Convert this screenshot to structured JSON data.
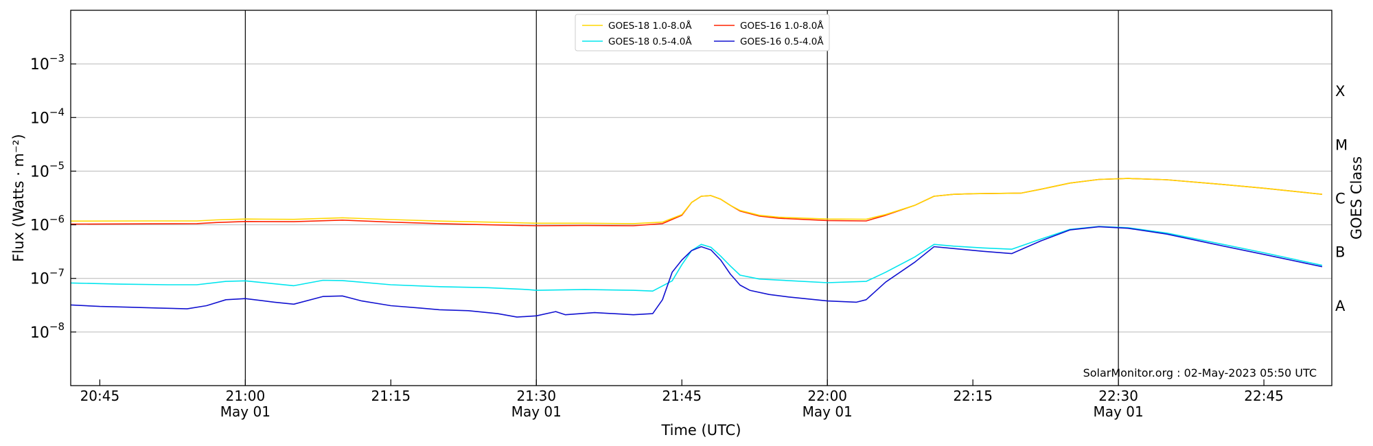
{
  "chart_data": {
    "type": "line",
    "y_scale": "log",
    "ylim": [
      1e-09,
      0.01
    ],
    "xlim": [
      "2023-05-01 20:42",
      "2023-05-01 22:52"
    ],
    "grid": "horizontal",
    "legend_position": "top-center",
    "xlabel": "Time (UTC)",
    "ylabel": "Flux (Watts · m⁻²)",
    "ylabel_right": "GOES Class",
    "credit": "SolarMonitor.org : 02-May-2023 05:50 UTC",
    "x_ticks": [
      {
        "time": "2023-05-01 20:45",
        "label": "20:45",
        "sub": ""
      },
      {
        "time": "2023-05-01 21:00",
        "label": "21:00",
        "sub": "May 01"
      },
      {
        "time": "2023-05-01 21:15",
        "label": "21:15",
        "sub": ""
      },
      {
        "time": "2023-05-01 21:30",
        "label": "21:30",
        "sub": "May 01"
      },
      {
        "time": "2023-05-01 21:45",
        "label": "21:45",
        "sub": ""
      },
      {
        "time": "2023-05-01 22:00",
        "label": "22:00",
        "sub": "May 01"
      },
      {
        "time": "2023-05-01 22:15",
        "label": "22:15",
        "sub": ""
      },
      {
        "time": "2023-05-01 22:30",
        "label": "22:30",
        "sub": "May 01"
      },
      {
        "time": "2023-05-01 22:45",
        "label": "22:45",
        "sub": ""
      }
    ],
    "vertical_lines": [
      "2023-05-01 21:00",
      "2023-05-01 21:30",
      "2023-05-01 22:00",
      "2023-05-01 22:30"
    ],
    "y_ticks": [
      {
        "value": 1e-08,
        "base": "10",
        "exp": "−8"
      },
      {
        "value": 1e-07,
        "base": "10",
        "exp": "−7"
      },
      {
        "value": 1e-06,
        "base": "10",
        "exp": "−6"
      },
      {
        "value": 1e-05,
        "base": "10",
        "exp": "−5"
      },
      {
        "value": 0.0001,
        "base": "10",
        "exp": "−4"
      },
      {
        "value": 0.001,
        "base": "10",
        "exp": "−3"
      }
    ],
    "goes_classes": [
      {
        "label": "A",
        "value": 3.16e-08
      },
      {
        "label": "B",
        "value": 3.16e-07
      },
      {
        "label": "C",
        "value": 3.16e-06
      },
      {
        "label": "M",
        "value": 3.16e-05
      },
      {
        "label": "X",
        "value": 0.000316
      }
    ],
    "series": [
      {
        "name": "GOES-18 1.0-8.0Å",
        "color": "#ffd700",
        "points": [
          [
            "2023-05-01 20:42",
            1.17e-06
          ],
          [
            "2023-05-01 20:50",
            1.18e-06
          ],
          [
            "2023-05-01 20:55",
            1.18e-06
          ],
          [
            "2023-05-01 20:57",
            1.23e-06
          ],
          [
            "2023-05-01 21:00",
            1.28e-06
          ],
          [
            "2023-05-01 21:05",
            1.26e-06
          ],
          [
            "2023-05-01 21:10",
            1.35e-06
          ],
          [
            "2023-05-01 21:15",
            1.25e-06
          ],
          [
            "2023-05-01 21:20",
            1.17e-06
          ],
          [
            "2023-05-01 21:25",
            1.12e-06
          ],
          [
            "2023-05-01 21:30",
            1.07e-06
          ],
          [
            "2023-05-01 21:35",
            1.07e-06
          ],
          [
            "2023-05-01 21:40",
            1.05e-06
          ],
          [
            "2023-05-01 21:43",
            1.12e-06
          ],
          [
            "2023-05-01 21:45",
            1.55e-06
          ],
          [
            "2023-05-01 21:46",
            2.6e-06
          ],
          [
            "2023-05-01 21:47",
            3.4e-06
          ],
          [
            "2023-05-01 21:48",
            3.5e-06
          ],
          [
            "2023-05-01 21:49",
            3e-06
          ],
          [
            "2023-05-01 21:50",
            2.3e-06
          ],
          [
            "2023-05-01 21:51",
            1.85e-06
          ],
          [
            "2023-05-01 21:53",
            1.5e-06
          ],
          [
            "2023-05-01 21:55",
            1.38e-06
          ],
          [
            "2023-05-01 22:00",
            1.28e-06
          ],
          [
            "2023-05-01 22:04",
            1.27e-06
          ],
          [
            "2023-05-01 22:06",
            1.55e-06
          ],
          [
            "2023-05-01 22:09",
            2.3e-06
          ],
          [
            "2023-05-01 22:11",
            3.4e-06
          ],
          [
            "2023-05-01 22:13",
            3.7e-06
          ],
          [
            "2023-05-01 22:15",
            3.8e-06
          ],
          [
            "2023-05-01 22:20",
            3.9e-06
          ],
          [
            "2023-05-01 22:22",
            4.6e-06
          ],
          [
            "2023-05-01 22:25",
            6e-06
          ],
          [
            "2023-05-01 22:28",
            7e-06
          ],
          [
            "2023-05-01 22:31",
            7.3e-06
          ],
          [
            "2023-05-01 22:35",
            6.9e-06
          ],
          [
            "2023-05-01 22:40",
            5.8e-06
          ],
          [
            "2023-05-01 22:45",
            4.8e-06
          ],
          [
            "2023-05-01 22:51",
            3.7e-06
          ]
        ]
      },
      {
        "name": "GOES-18 0.5-4.0Å",
        "color": "#00e5ee",
        "points": [
          [
            "2023-05-01 20:42",
            8.2e-08
          ],
          [
            "2023-05-01 20:47",
            7.8e-08
          ],
          [
            "2023-05-01 20:52",
            7.6e-08
          ],
          [
            "2023-05-01 20:55",
            7.6e-08
          ],
          [
            "2023-05-01 20:58",
            8.8e-08
          ],
          [
            "2023-05-01 21:00",
            9e-08
          ],
          [
            "2023-05-01 21:05",
            7.3e-08
          ],
          [
            "2023-05-01 21:08",
            9.2e-08
          ],
          [
            "2023-05-01 21:10",
            9.1e-08
          ],
          [
            "2023-05-01 21:15",
            7.6e-08
          ],
          [
            "2023-05-01 21:20",
            7e-08
          ],
          [
            "2023-05-01 21:25",
            6.7e-08
          ],
          [
            "2023-05-01 21:29",
            6.2e-08
          ],
          [
            "2023-05-01 21:30",
            6e-08
          ],
          [
            "2023-05-01 21:35",
            6.2e-08
          ],
          [
            "2023-05-01 21:40",
            6e-08
          ],
          [
            "2023-05-01 21:42",
            5.8e-08
          ],
          [
            "2023-05-01 21:44",
            9e-08
          ],
          [
            "2023-05-01 21:45",
            1.8e-07
          ],
          [
            "2023-05-01 21:46",
            3.3e-07
          ],
          [
            "2023-05-01 21:47",
            4.3e-07
          ],
          [
            "2023-05-01 21:48",
            3.8e-07
          ],
          [
            "2023-05-01 21:49",
            2.6e-07
          ],
          [
            "2023-05-01 21:50",
            1.7e-07
          ],
          [
            "2023-05-01 21:51",
            1.15e-07
          ],
          [
            "2023-05-01 21:53",
            9.7e-08
          ],
          [
            "2023-05-01 21:55",
            9.3e-08
          ],
          [
            "2023-05-01 22:00",
            8.3e-08
          ],
          [
            "2023-05-01 22:04",
            8.8e-08
          ],
          [
            "2023-05-01 22:06",
            1.3e-07
          ],
          [
            "2023-05-01 22:09",
            2.5e-07
          ],
          [
            "2023-05-01 22:11",
            4.3e-07
          ],
          [
            "2023-05-01 22:13",
            4e-07
          ],
          [
            "2023-05-01 22:16",
            3.7e-07
          ],
          [
            "2023-05-01 22:19",
            3.5e-07
          ],
          [
            "2023-05-01 22:22",
            5.4e-07
          ],
          [
            "2023-05-01 22:25",
            8.2e-07
          ],
          [
            "2023-05-01 22:28",
            9.3e-07
          ],
          [
            "2023-05-01 22:31",
            8.8e-07
          ],
          [
            "2023-05-01 22:35",
            7e-07
          ],
          [
            "2023-05-01 22:40",
            4.6e-07
          ],
          [
            "2023-05-01 22:45",
            3e-07
          ],
          [
            "2023-05-01 22:51",
            1.75e-07
          ]
        ]
      },
      {
        "name": "GOES-16 1.0-8.0Å",
        "color": "#ff2200",
        "points": [
          [
            "2023-05-01 20:42",
            1.03e-06
          ],
          [
            "2023-05-01 20:50",
            1.04e-06
          ],
          [
            "2023-05-01 20:55",
            1.05e-06
          ],
          [
            "2023-05-01 20:57",
            1.1e-06
          ],
          [
            "2023-05-01 21:00",
            1.15e-06
          ],
          [
            "2023-05-01 21:05",
            1.14e-06
          ],
          [
            "2023-05-01 21:10",
            1.22e-06
          ],
          [
            "2023-05-01 21:15",
            1.12e-06
          ],
          [
            "2023-05-01 21:20",
            1.05e-06
          ],
          [
            "2023-05-01 21:25",
            1e-06
          ],
          [
            "2023-05-01 21:30",
            9.6e-07
          ],
          [
            "2023-05-01 21:35",
            9.7e-07
          ],
          [
            "2023-05-01 21:40",
            9.6e-07
          ],
          [
            "2023-05-01 21:43",
            1.05e-06
          ],
          [
            "2023-05-01 21:45",
            1.5e-06
          ],
          [
            "2023-05-01 21:46",
            2.6e-06
          ],
          [
            "2023-05-01 21:47",
            3.4e-06
          ],
          [
            "2023-05-01 21:48",
            3.5e-06
          ],
          [
            "2023-05-01 21:49",
            3e-06
          ],
          [
            "2023-05-01 21:50",
            2.3e-06
          ],
          [
            "2023-05-01 21:51",
            1.8e-06
          ],
          [
            "2023-05-01 21:53",
            1.45e-06
          ],
          [
            "2023-05-01 21:55",
            1.32e-06
          ],
          [
            "2023-05-01 22:00",
            1.2e-06
          ],
          [
            "2023-05-01 22:04",
            1.18e-06
          ],
          [
            "2023-05-01 22:06",
            1.5e-06
          ],
          [
            "2023-05-01 22:09",
            2.3e-06
          ],
          [
            "2023-05-01 22:11",
            3.4e-06
          ],
          [
            "2023-05-01 22:13",
            3.7e-06
          ],
          [
            "2023-05-01 22:15",
            3.8e-06
          ],
          [
            "2023-05-01 22:20",
            3.9e-06
          ],
          [
            "2023-05-01 22:22",
            4.6e-06
          ],
          [
            "2023-05-01 22:25",
            6e-06
          ],
          [
            "2023-05-01 22:28",
            7e-06
          ],
          [
            "2023-05-01 22:31",
            7.3e-06
          ],
          [
            "2023-05-01 22:35",
            6.9e-06
          ],
          [
            "2023-05-01 22:40",
            5.8e-06
          ],
          [
            "2023-05-01 22:45",
            4.8e-06
          ],
          [
            "2023-05-01 22:51",
            3.7e-06
          ]
        ]
      },
      {
        "name": "GOES-16 0.5-4.0Å",
        "color": "#1010d0",
        "points": [
          [
            "2023-05-01 20:42",
            3.2e-08
          ],
          [
            "2023-05-01 20:45",
            3e-08
          ],
          [
            "2023-05-01 20:48",
            2.9e-08
          ],
          [
            "2023-05-01 20:51",
            2.8e-08
          ],
          [
            "2023-05-01 20:54",
            2.7e-08
          ],
          [
            "2023-05-01 20:56",
            3.1e-08
          ],
          [
            "2023-05-01 20:58",
            4e-08
          ],
          [
            "2023-05-01 21:00",
            4.2e-08
          ],
          [
            "2023-05-01 21:03",
            3.6e-08
          ],
          [
            "2023-05-01 21:05",
            3.3e-08
          ],
          [
            "2023-05-01 21:08",
            4.6e-08
          ],
          [
            "2023-05-01 21:10",
            4.7e-08
          ],
          [
            "2023-05-01 21:12",
            3.8e-08
          ],
          [
            "2023-05-01 21:15",
            3.1e-08
          ],
          [
            "2023-05-01 21:18",
            2.8e-08
          ],
          [
            "2023-05-01 21:20",
            2.6e-08
          ],
          [
            "2023-05-01 21:23",
            2.5e-08
          ],
          [
            "2023-05-01 21:26",
            2.2e-08
          ],
          [
            "2023-05-01 21:28",
            1.9e-08
          ],
          [
            "2023-05-01 21:30",
            2e-08
          ],
          [
            "2023-05-01 21:32",
            2.4e-08
          ],
          [
            "2023-05-01 21:33",
            2.1e-08
          ],
          [
            "2023-05-01 21:36",
            2.3e-08
          ],
          [
            "2023-05-01 21:40",
            2.1e-08
          ],
          [
            "2023-05-01 21:42",
            2.2e-08
          ],
          [
            "2023-05-01 21:43",
            4e-08
          ],
          [
            "2023-05-01 21:44",
            1.3e-07
          ],
          [
            "2023-05-01 21:45",
            2.2e-07
          ],
          [
            "2023-05-01 21:46",
            3.3e-07
          ],
          [
            "2023-05-01 21:47",
            3.9e-07
          ],
          [
            "2023-05-01 21:48",
            3.4e-07
          ],
          [
            "2023-05-01 21:49",
            2.2e-07
          ],
          [
            "2023-05-01 21:50",
            1.2e-07
          ],
          [
            "2023-05-01 21:51",
            7.5e-08
          ],
          [
            "2023-05-01 21:52",
            6e-08
          ],
          [
            "2023-05-01 21:54",
            5e-08
          ],
          [
            "2023-05-01 21:56",
            4.5e-08
          ],
          [
            "2023-05-01 22:00",
            3.8e-08
          ],
          [
            "2023-05-01 22:03",
            3.6e-08
          ],
          [
            "2023-05-01 22:04",
            4e-08
          ],
          [
            "2023-05-01 22:06",
            8.5e-08
          ],
          [
            "2023-05-01 22:09",
            2e-07
          ],
          [
            "2023-05-01 22:11",
            3.9e-07
          ],
          [
            "2023-05-01 22:13",
            3.6e-07
          ],
          [
            "2023-05-01 22:16",
            3.2e-07
          ],
          [
            "2023-05-01 22:19",
            2.9e-07
          ],
          [
            "2023-05-01 22:22",
            5e-07
          ],
          [
            "2023-05-01 22:25",
            8e-07
          ],
          [
            "2023-05-01 22:28",
            9.2e-07
          ],
          [
            "2023-05-01 22:31",
            8.6e-07
          ],
          [
            "2023-05-01 22:35",
            6.7e-07
          ],
          [
            "2023-05-01 22:40",
            4.3e-07
          ],
          [
            "2023-05-01 22:45",
            2.8e-07
          ],
          [
            "2023-05-01 22:51",
            1.65e-07
          ]
        ]
      }
    ]
  }
}
